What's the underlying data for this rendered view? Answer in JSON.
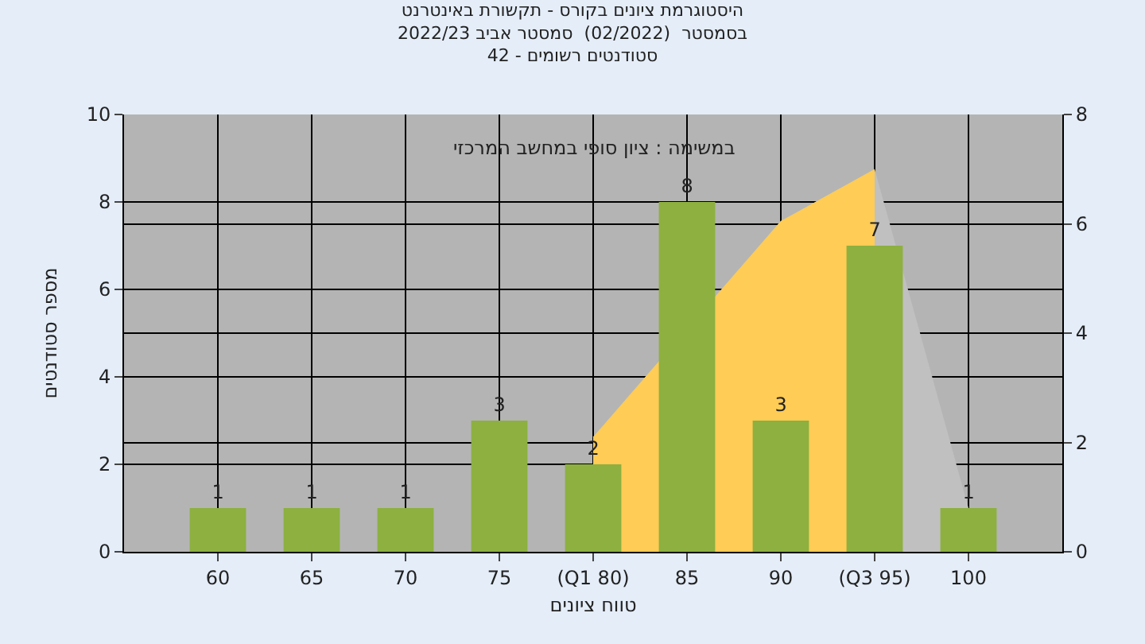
{
  "chart_data": {
    "type": "bar",
    "title": "היסטוגרמת ציונים בקורס - תקשורת באינטרנט",
    "subtitle": "בסמסטר  (02/2022)  סמסטר אביב 2022/23\nסטודנטים רשומים - 42",
    "xlabel": "טווח ציונים",
    "ylabel": "מספר סטודנטים",
    "annotations": [
      "במשימה : ציון סופי במחשב המרכזי"
    ],
    "categories": [
      "60",
      "65",
      "70",
      "75",
      "(Q1 80)",
      "85",
      "90",
      "(Q3 95)",
      "100"
    ],
    "series": [
      {
        "type": "area",
        "axis": "y2",
        "color": "#c0c0c0",
        "x": [
          "75",
          "(Q1 80)",
          "85",
          "90",
          "(Q3 95)",
          "100"
        ],
        "values": [
          null,
          2.1,
          null,
          6.05,
          7.0,
          0.8
        ]
      },
      {
        "type": "area",
        "axis": "y2",
        "color": "#ffcc55",
        "x": [
          "(Q1 80)",
          "85",
          "90",
          "(Q3 95)"
        ],
        "values": [
          2.1,
          null,
          6.05,
          7.0
        ]
      },
      {
        "color": "#8db040",
        "values": [
          1,
          1,
          1,
          3,
          2,
          8,
          3,
          7,
          1
        ],
        "value_labels": [
          "1",
          "1",
          "1",
          "3",
          "2",
          "8",
          "3",
          "7",
          "1"
        ]
      }
    ],
    "ylim": [
      0,
      10
    ],
    "yticks": [
      0,
      2,
      4,
      6,
      8,
      10
    ],
    "y2lim": [
      0,
      8
    ],
    "y2ticks": [
      0,
      2,
      4,
      6,
      8
    ],
    "grid": true
  }
}
